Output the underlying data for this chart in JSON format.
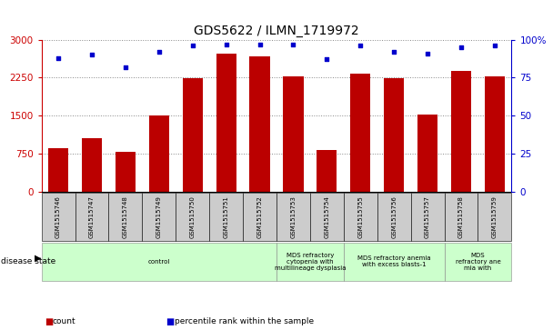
{
  "title": "GDS5622 / ILMN_1719972",
  "samples": [
    "GSM1515746",
    "GSM1515747",
    "GSM1515748",
    "GSM1515749",
    "GSM1515750",
    "GSM1515751",
    "GSM1515752",
    "GSM1515753",
    "GSM1515754",
    "GSM1515755",
    "GSM1515756",
    "GSM1515757",
    "GSM1515758",
    "GSM1515759"
  ],
  "counts": [
    850,
    1050,
    790,
    1500,
    2230,
    2720,
    2660,
    2280,
    820,
    2330,
    2240,
    1510,
    2380,
    2280
  ],
  "percentile_ranks": [
    88,
    90,
    82,
    92,
    96,
    97,
    97,
    97,
    87,
    96,
    92,
    91,
    95,
    96
  ],
  "bar_color": "#bb0000",
  "dot_color": "#0000cc",
  "ylim_left": [
    0,
    3000
  ],
  "ylim_right": [
    0,
    100
  ],
  "yticks_left": [
    0,
    750,
    1500,
    2250,
    3000
  ],
  "yticks_right": [
    0,
    25,
    50,
    75,
    100
  ],
  "disease_groups": [
    {
      "label": "control",
      "start": 0,
      "end": 7,
      "color": "#ccffcc"
    },
    {
      "label": "MDS refractory\ncytopenia with\nmultilineage dysplasia",
      "start": 7,
      "end": 9,
      "color": "#ccffcc"
    },
    {
      "label": "MDS refractory anemia\nwith excess blasts-1",
      "start": 9,
      "end": 12,
      "color": "#ccffcc"
    },
    {
      "label": "MDS\nrefractory ane\nmia with",
      "start": 12,
      "end": 14,
      "color": "#ccffcc"
    }
  ],
  "legend_items": [
    {
      "label": "count",
      "color": "#bb0000"
    },
    {
      "label": "percentile rank within the sample",
      "color": "#0000cc"
    }
  ],
  "disease_state_label": "disease state",
  "left_axis_color": "#cc0000",
  "right_axis_color": "#0000cc",
  "grid_color": "#888888",
  "sample_box_color": "#cccccc",
  "bottom_border_color": "#000000"
}
